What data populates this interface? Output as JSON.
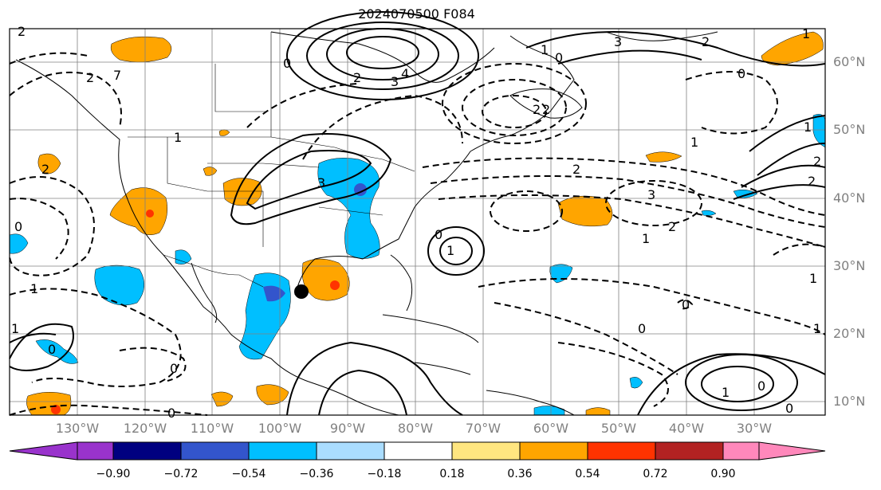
{
  "title": "2024070500 F084",
  "lat_labels": [
    "60°N",
    "50°N",
    "40°N",
    "30°N",
    "20°N",
    "10°N"
  ],
  "lon_labels": [
    "130°W",
    "120°W",
    "110°W",
    "100°W",
    "90°W",
    "80°W",
    "70°W",
    "60°W",
    "50°W",
    "40°W",
    "30°W"
  ],
  "colorbar": {
    "ticks": [
      "−0.90",
      "−0.72",
      "−0.54",
      "−0.36",
      "−0.18",
      "0.18",
      "0.36",
      "0.54",
      "0.72",
      "0.90"
    ],
    "colors": [
      "#9933cc",
      "#000080",
      "#3355cc",
      "#00bfff",
      "#aaddff",
      "#ffffff",
      "#ffe680",
      "#ffa500",
      "#ff3300",
      "#b22222",
      "#ff88bb"
    ]
  },
  "contour_labels": [
    "2",
    "7",
    "0",
    "2",
    "1",
    "3",
    "4",
    "2",
    "3",
    "2",
    "0",
    "2",
    "1",
    "1",
    "2",
    "2",
    "3",
    "2",
    "1",
    "0",
    "1",
    "0",
    "1",
    "1",
    "0",
    "0",
    "0",
    "2",
    "1",
    "1",
    "1",
    "0",
    "0",
    "0",
    "1",
    "0",
    "1",
    "2",
    "3",
    "2",
    "0"
  ],
  "colors": {
    "positive": "#ffa500",
    "negative": "#00bfff",
    "grid": "#808080",
    "contour": "#000000"
  }
}
